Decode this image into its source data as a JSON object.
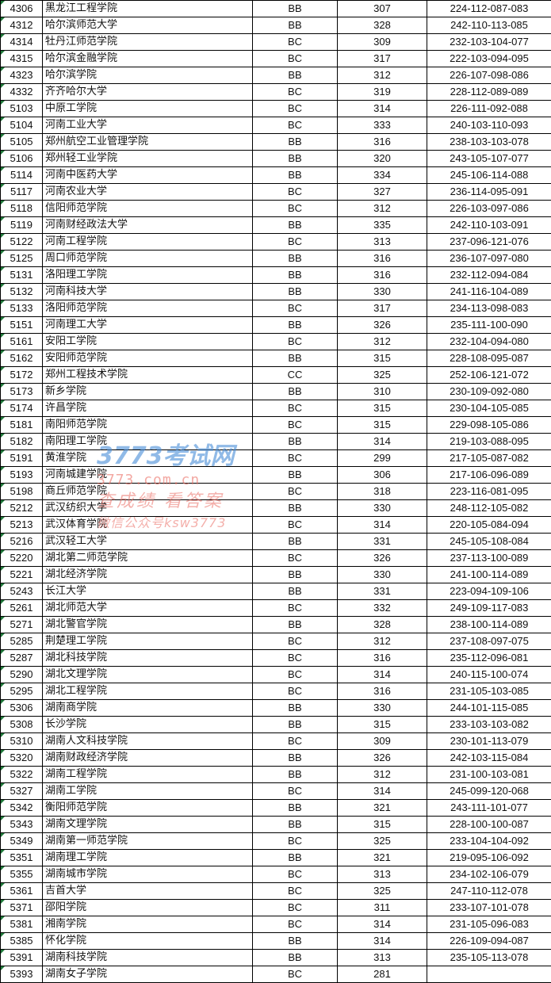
{
  "rows": [
    [
      "4306",
      "黑龙江工程学院",
      "BB",
      "307",
      "224-112-087-083"
    ],
    [
      "4312",
      "哈尔滨师范大学",
      "BB",
      "328",
      "242-110-113-085"
    ],
    [
      "4314",
      "牡丹江师范学院",
      "BC",
      "309",
      "232-103-104-077"
    ],
    [
      "4315",
      "哈尔滨金融学院",
      "BC",
      "317",
      "222-103-094-095"
    ],
    [
      "4323",
      "哈尔滨学院",
      "BB",
      "312",
      "226-107-098-086"
    ],
    [
      "4332",
      "齐齐哈尔大学",
      "BC",
      "319",
      "228-112-089-089"
    ],
    [
      "5103",
      "中原工学院",
      "BC",
      "314",
      "226-111-092-088"
    ],
    [
      "5104",
      "河南工业大学",
      "BC",
      "333",
      "240-103-110-093"
    ],
    [
      "5105",
      "郑州航空工业管理学院",
      "BB",
      "316",
      "238-103-103-078"
    ],
    [
      "5106",
      "郑州轻工业学院",
      "BB",
      "320",
      "243-105-107-077"
    ],
    [
      "5114",
      "河南中医药大学",
      "BB",
      "334",
      "245-106-114-088"
    ],
    [
      "5117",
      "河南农业大学",
      "BC",
      "327",
      "236-114-095-091"
    ],
    [
      "5118",
      "信阳师范学院",
      "BC",
      "312",
      "226-103-097-086"
    ],
    [
      "5119",
      "河南财经政法大学",
      "BB",
      "335",
      "242-110-103-091"
    ],
    [
      "5122",
      "河南工程学院",
      "BC",
      "313",
      "237-096-121-076"
    ],
    [
      "5125",
      "周口师范学院",
      "BB",
      "316",
      "236-107-097-080"
    ],
    [
      "5131",
      "洛阳理工学院",
      "BB",
      "316",
      "232-112-094-084"
    ],
    [
      "5132",
      "河南科技大学",
      "BB",
      "330",
      "241-116-104-089"
    ],
    [
      "5133",
      "洛阳师范学院",
      "BC",
      "317",
      "234-113-098-083"
    ],
    [
      "5151",
      "河南理工大学",
      "BB",
      "326",
      "235-111-100-090"
    ],
    [
      "5161",
      "安阳工学院",
      "BC",
      "312",
      "232-104-094-080"
    ],
    [
      "5162",
      "安阳师范学院",
      "BB",
      "315",
      "228-108-095-087"
    ],
    [
      "5172",
      "郑州工程技术学院",
      "CC",
      "325",
      "252-106-121-072"
    ],
    [
      "5173",
      "新乡学院",
      "BB",
      "310",
      "230-109-092-080"
    ],
    [
      "5174",
      "许昌学院",
      "BC",
      "315",
      "230-104-105-085"
    ],
    [
      "5181",
      "南阳师范学院",
      "BC",
      "315",
      "229-098-105-086"
    ],
    [
      "5182",
      "南阳理工学院",
      "BB",
      "314",
      "219-103-088-095"
    ],
    [
      "5191",
      "黄淮学院",
      "BC",
      "299",
      "217-105-087-082"
    ],
    [
      "5193",
      "河南城建学院",
      "BB",
      "306",
      "217-106-096-089"
    ],
    [
      "5198",
      "商丘师范学院",
      "BC",
      "318",
      "223-116-081-095"
    ],
    [
      "5212",
      "武汉纺织大学",
      "BB",
      "330",
      "248-112-105-082"
    ],
    [
      "5213",
      "武汉体育学院",
      "BC",
      "314",
      "220-105-084-094"
    ],
    [
      "5216",
      "武汉轻工大学",
      "BB",
      "331",
      "245-105-108-084"
    ],
    [
      "5220",
      "湖北第二师范学院",
      "BC",
      "326",
      "237-113-100-089"
    ],
    [
      "5221",
      "湖北经济学院",
      "BB",
      "330",
      "241-100-114-089"
    ],
    [
      "5243",
      "长江大学",
      "BB",
      "331",
      "223-094-109-106"
    ],
    [
      "5261",
      "湖北师范大学",
      "BC",
      "332",
      "249-109-117-083"
    ],
    [
      "5271",
      "湖北警官学院",
      "BB",
      "328",
      "238-100-114-089"
    ],
    [
      "5285",
      "荆楚理工学院",
      "BC",
      "312",
      "237-108-097-075"
    ],
    [
      "5287",
      "湖北科技学院",
      "BC",
      "316",
      "235-112-096-081"
    ],
    [
      "5290",
      "湖北文理学院",
      "BC",
      "314",
      "240-115-100-074"
    ],
    [
      "5295",
      "湖北工程学院",
      "BC",
      "316",
      "231-105-103-085"
    ],
    [
      "5306",
      "湖南商学院",
      "BB",
      "330",
      "244-101-115-085"
    ],
    [
      "5308",
      "长沙学院",
      "BB",
      "315",
      "233-103-103-082"
    ],
    [
      "5310",
      "湖南人文科技学院",
      "BC",
      "309",
      "230-101-113-079"
    ],
    [
      "5320",
      "湖南财政经济学院",
      "BB",
      "326",
      "242-103-115-084"
    ],
    [
      "5322",
      "湖南工程学院",
      "BB",
      "312",
      "231-100-103-081"
    ],
    [
      "5327",
      "湖南工学院",
      "BC",
      "314",
      "245-099-120-068"
    ],
    [
      "5342",
      "衡阳师范学院",
      "BB",
      "321",
      "243-111-101-077"
    ],
    [
      "5343",
      "湖南文理学院",
      "BB",
      "315",
      "228-100-100-087"
    ],
    [
      "5349",
      "湖南第一师范学院",
      "BC",
      "325",
      "233-104-104-092"
    ],
    [
      "5351",
      "湖南理工学院",
      "BB",
      "321",
      "219-095-106-092"
    ],
    [
      "5355",
      "湖南城市学院",
      "BC",
      "313",
      "234-102-106-079"
    ],
    [
      "5361",
      "吉首大学",
      "BC",
      "325",
      "247-110-112-078"
    ],
    [
      "5371",
      "邵阳学院",
      "BC",
      "311",
      "233-107-101-078"
    ],
    [
      "5381",
      "湘南学院",
      "BC",
      "314",
      "231-105-096-083"
    ],
    [
      "5385",
      "怀化学院",
      "BB",
      "314",
      "226-109-094-087"
    ],
    [
      "5391",
      "湖南科技学院",
      "BB",
      "313",
      "235-105-113-078"
    ],
    [
      "5393",
      "湖南女子学院",
      "BC",
      "281",
      ""
    ]
  ],
  "watermark": {
    "logo": "3773考试网",
    "site": "3773.com.cn",
    "slogan": "查成绩 看答案",
    "wechat": "微信公众号ksw3773"
  },
  "colors": {
    "grid": "#000000",
    "text_marker": "#1f7a3a",
    "watermark_blue": "#468cd7",
    "watermark_red": "#eb6e64"
  }
}
